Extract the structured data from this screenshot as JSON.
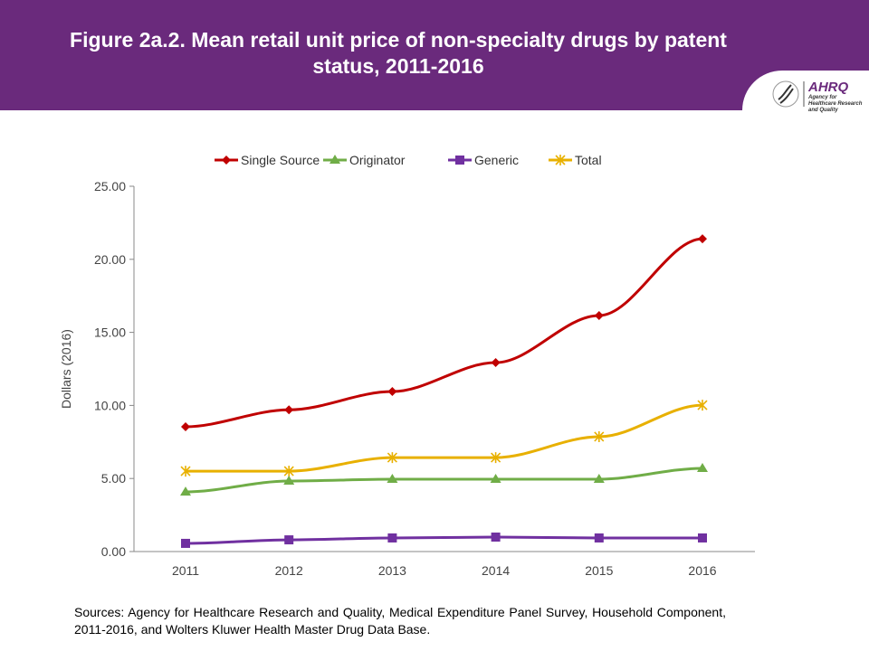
{
  "header": {
    "title": "Figure 2a.2. Mean retail unit price of non-specialty drugs by patent status, 2011-2016",
    "logo_text": "AHRQ",
    "logo_subtitle": "Agency for Healthcare Research and Quality",
    "color": "#6a2a7c"
  },
  "chart_data": {
    "type": "line",
    "title": "",
    "xlabel": "",
    "ylabel": "Dollars (2016)",
    "ylim": [
      0,
      25
    ],
    "y_ticks": [
      "0.00",
      "5.00",
      "10.00",
      "15.00",
      "20.00",
      "25.00"
    ],
    "categories": [
      "2011",
      "2012",
      "2013",
      "2014",
      "2015",
      "2016"
    ],
    "legend_position": "top",
    "grid": false,
    "series": [
      {
        "name": "Single Source",
        "color": "#c00000",
        "marker": "diamond",
        "values": [
          8.54,
          9.7,
          10.95,
          12.93,
          16.15,
          21.4
        ]
      },
      {
        "name": "Originator",
        "color": "#70ad47",
        "marker": "triangle",
        "values": [
          4.08,
          4.83,
          4.95,
          4.95,
          4.95,
          5.69
        ]
      },
      {
        "name": "Generic",
        "color": "#7030a0",
        "marker": "square",
        "values": [
          0.56,
          0.8,
          0.93,
          0.99,
          0.93,
          0.93
        ]
      },
      {
        "name": "Total",
        "color": "#e8b000",
        "marker": "star",
        "values": [
          5.5,
          5.5,
          6.43,
          6.43,
          7.86,
          10.02
        ]
      }
    ]
  },
  "sources": "Sources: Agency for Healthcare Research and Quality, Medical Expenditure Panel Survey, Household Component, 2011-2016, and Wolters Kluwer Health Master Drug Data Base."
}
